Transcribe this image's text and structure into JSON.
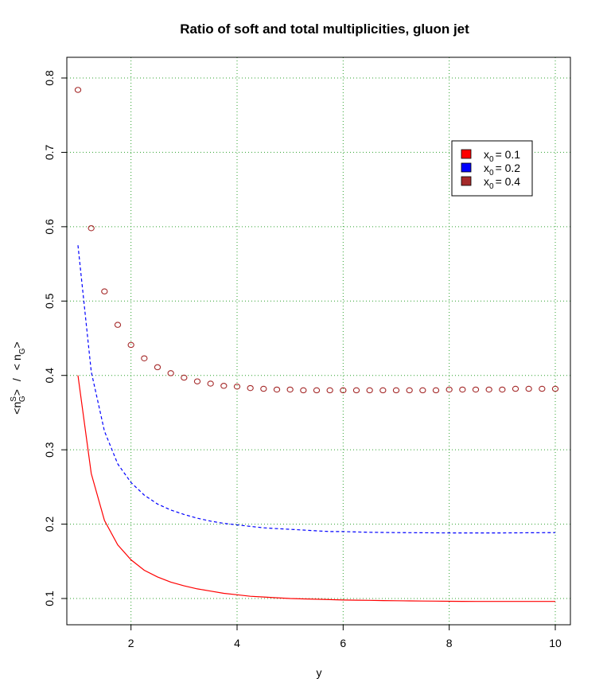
{
  "chart_data": {
    "type": "line",
    "title": "Ratio of soft and total multiplicities, gluon jet",
    "xlabel": "y",
    "ylabel": {
      "open": "<",
      "n": "n",
      "sup": "S",
      "sub": "G",
      "close": ">",
      "slash": "/",
      "open2": "<",
      "n2": "n",
      "sub2": "G",
      "close2": ">"
    },
    "xlim": [
      1,
      10
    ],
    "ylim": [
      0.1,
      0.8
    ],
    "xticks": [
      2,
      4,
      6,
      8,
      10
    ],
    "yticks": [
      0.1,
      0.2,
      0.3,
      0.4,
      0.5,
      0.6,
      0.7,
      0.8
    ],
    "xtick_labels": [
      "2",
      "4",
      "6",
      "8",
      "10"
    ],
    "ytick_labels": [
      "0.1",
      "0.2",
      "0.3",
      "0.4",
      "0.5",
      "0.6",
      "0.7",
      "0.8"
    ],
    "grid": true,
    "legend_position": "top-right",
    "x": [
      1.0,
      1.25,
      1.5,
      1.75,
      2.0,
      2.25,
      2.5,
      2.75,
      3.0,
      3.25,
      3.5,
      3.75,
      4.0,
      4.25,
      4.5,
      4.75,
      5.0,
      5.25,
      5.5,
      5.75,
      6.0,
      6.25,
      6.5,
      6.75,
      7.0,
      7.25,
      7.5,
      7.75,
      8.0,
      8.25,
      8.5,
      8.75,
      9.0,
      9.25,
      9.5,
      9.75,
      10.0
    ],
    "series": [
      {
        "legend": {
          "base": "x",
          "sub": "0",
          "eq": "= 0.1"
        },
        "style": "solid",
        "color": "#ff0000",
        "values": [
          0.4,
          0.268,
          0.205,
          0.172,
          0.152,
          0.138,
          0.129,
          0.122,
          0.117,
          0.113,
          0.11,
          0.107,
          0.105,
          0.103,
          0.102,
          0.101,
          0.1,
          0.0995,
          0.099,
          0.0985,
          0.098,
          0.0977,
          0.0975,
          0.0972,
          0.097,
          0.0968,
          0.0966,
          0.0965,
          0.0963,
          0.0962,
          0.096,
          0.096,
          0.096,
          0.096,
          0.096,
          0.096,
          0.096
        ]
      },
      {
        "legend": {
          "base": "x",
          "sub": "0",
          "eq": "= 0.2"
        },
        "style": "dashed",
        "color": "#0000ff",
        "values": [
          0.575,
          0.405,
          0.325,
          0.281,
          0.256,
          0.239,
          0.227,
          0.219,
          0.213,
          0.208,
          0.204,
          0.201,
          0.199,
          0.197,
          0.195,
          0.194,
          0.193,
          0.192,
          0.191,
          0.19,
          0.19,
          0.1895,
          0.189,
          0.1888,
          0.1886,
          0.1885,
          0.1884,
          0.1883,
          0.1882,
          0.1882,
          0.1882,
          0.1882,
          0.1882,
          0.1883,
          0.1884,
          0.1885,
          0.1886
        ]
      },
      {
        "legend": {
          "base": "x",
          "sub": "0",
          "eq": "= 0.4"
        },
        "style": "points",
        "color": "#a52a2a",
        "values": [
          0.784,
          0.598,
          0.513,
          0.468,
          0.441,
          0.423,
          0.411,
          0.403,
          0.397,
          0.392,
          0.389,
          0.386,
          0.385,
          0.383,
          0.382,
          0.381,
          0.381,
          0.38,
          0.38,
          0.38,
          0.38,
          0.38,
          0.38,
          0.38,
          0.38,
          0.38,
          0.38,
          0.38,
          0.381,
          0.381,
          0.381,
          0.381,
          0.381,
          0.382,
          0.382,
          0.382,
          0.382
        ]
      }
    ]
  }
}
